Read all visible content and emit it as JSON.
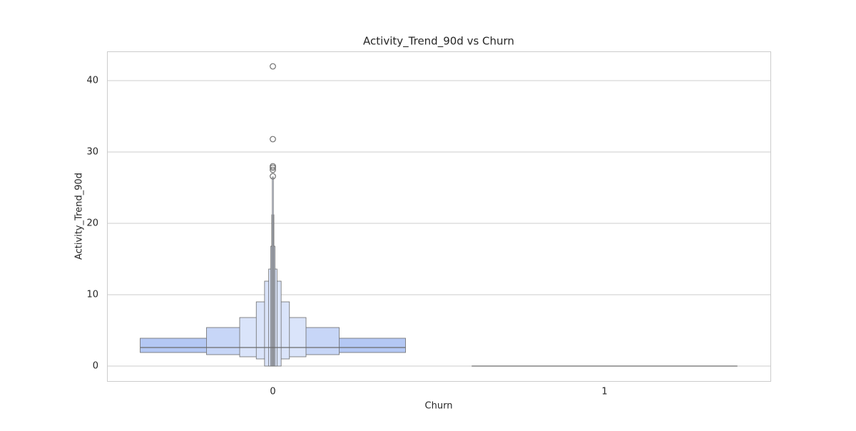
{
  "chart_data": {
    "type": "boxen",
    "title": "Activity_Trend_90d vs Churn",
    "x_label": "Churn",
    "y_label": "Activity_Trend_90d",
    "categories": [
      "0",
      "1"
    ],
    "color": "#b4c8f4",
    "boxes": [
      {
        "levels": [
          [
            1.9,
            3.9
          ],
          [
            1.6,
            5.4
          ],
          [
            1.3,
            6.8
          ],
          [
            1.0,
            9.0
          ],
          [
            0,
            11.9
          ],
          [
            0,
            13.6
          ],
          [
            0,
            16.8
          ],
          [
            0,
            21.2
          ],
          [
            0,
            26.5
          ]
        ],
        "median": 2.6,
        "outliers": [
          42.0,
          31.8,
          28.0,
          27.8,
          27.5,
          26.6
        ]
      },
      {
        "levels": [
          [
            0,
            0
          ]
        ],
        "median": 0,
        "outliers": []
      }
    ],
    "ylim": [
      -2.1,
      44.1
    ],
    "yticks": [
      0,
      10,
      20,
      30,
      40
    ],
    "grid": true
  }
}
